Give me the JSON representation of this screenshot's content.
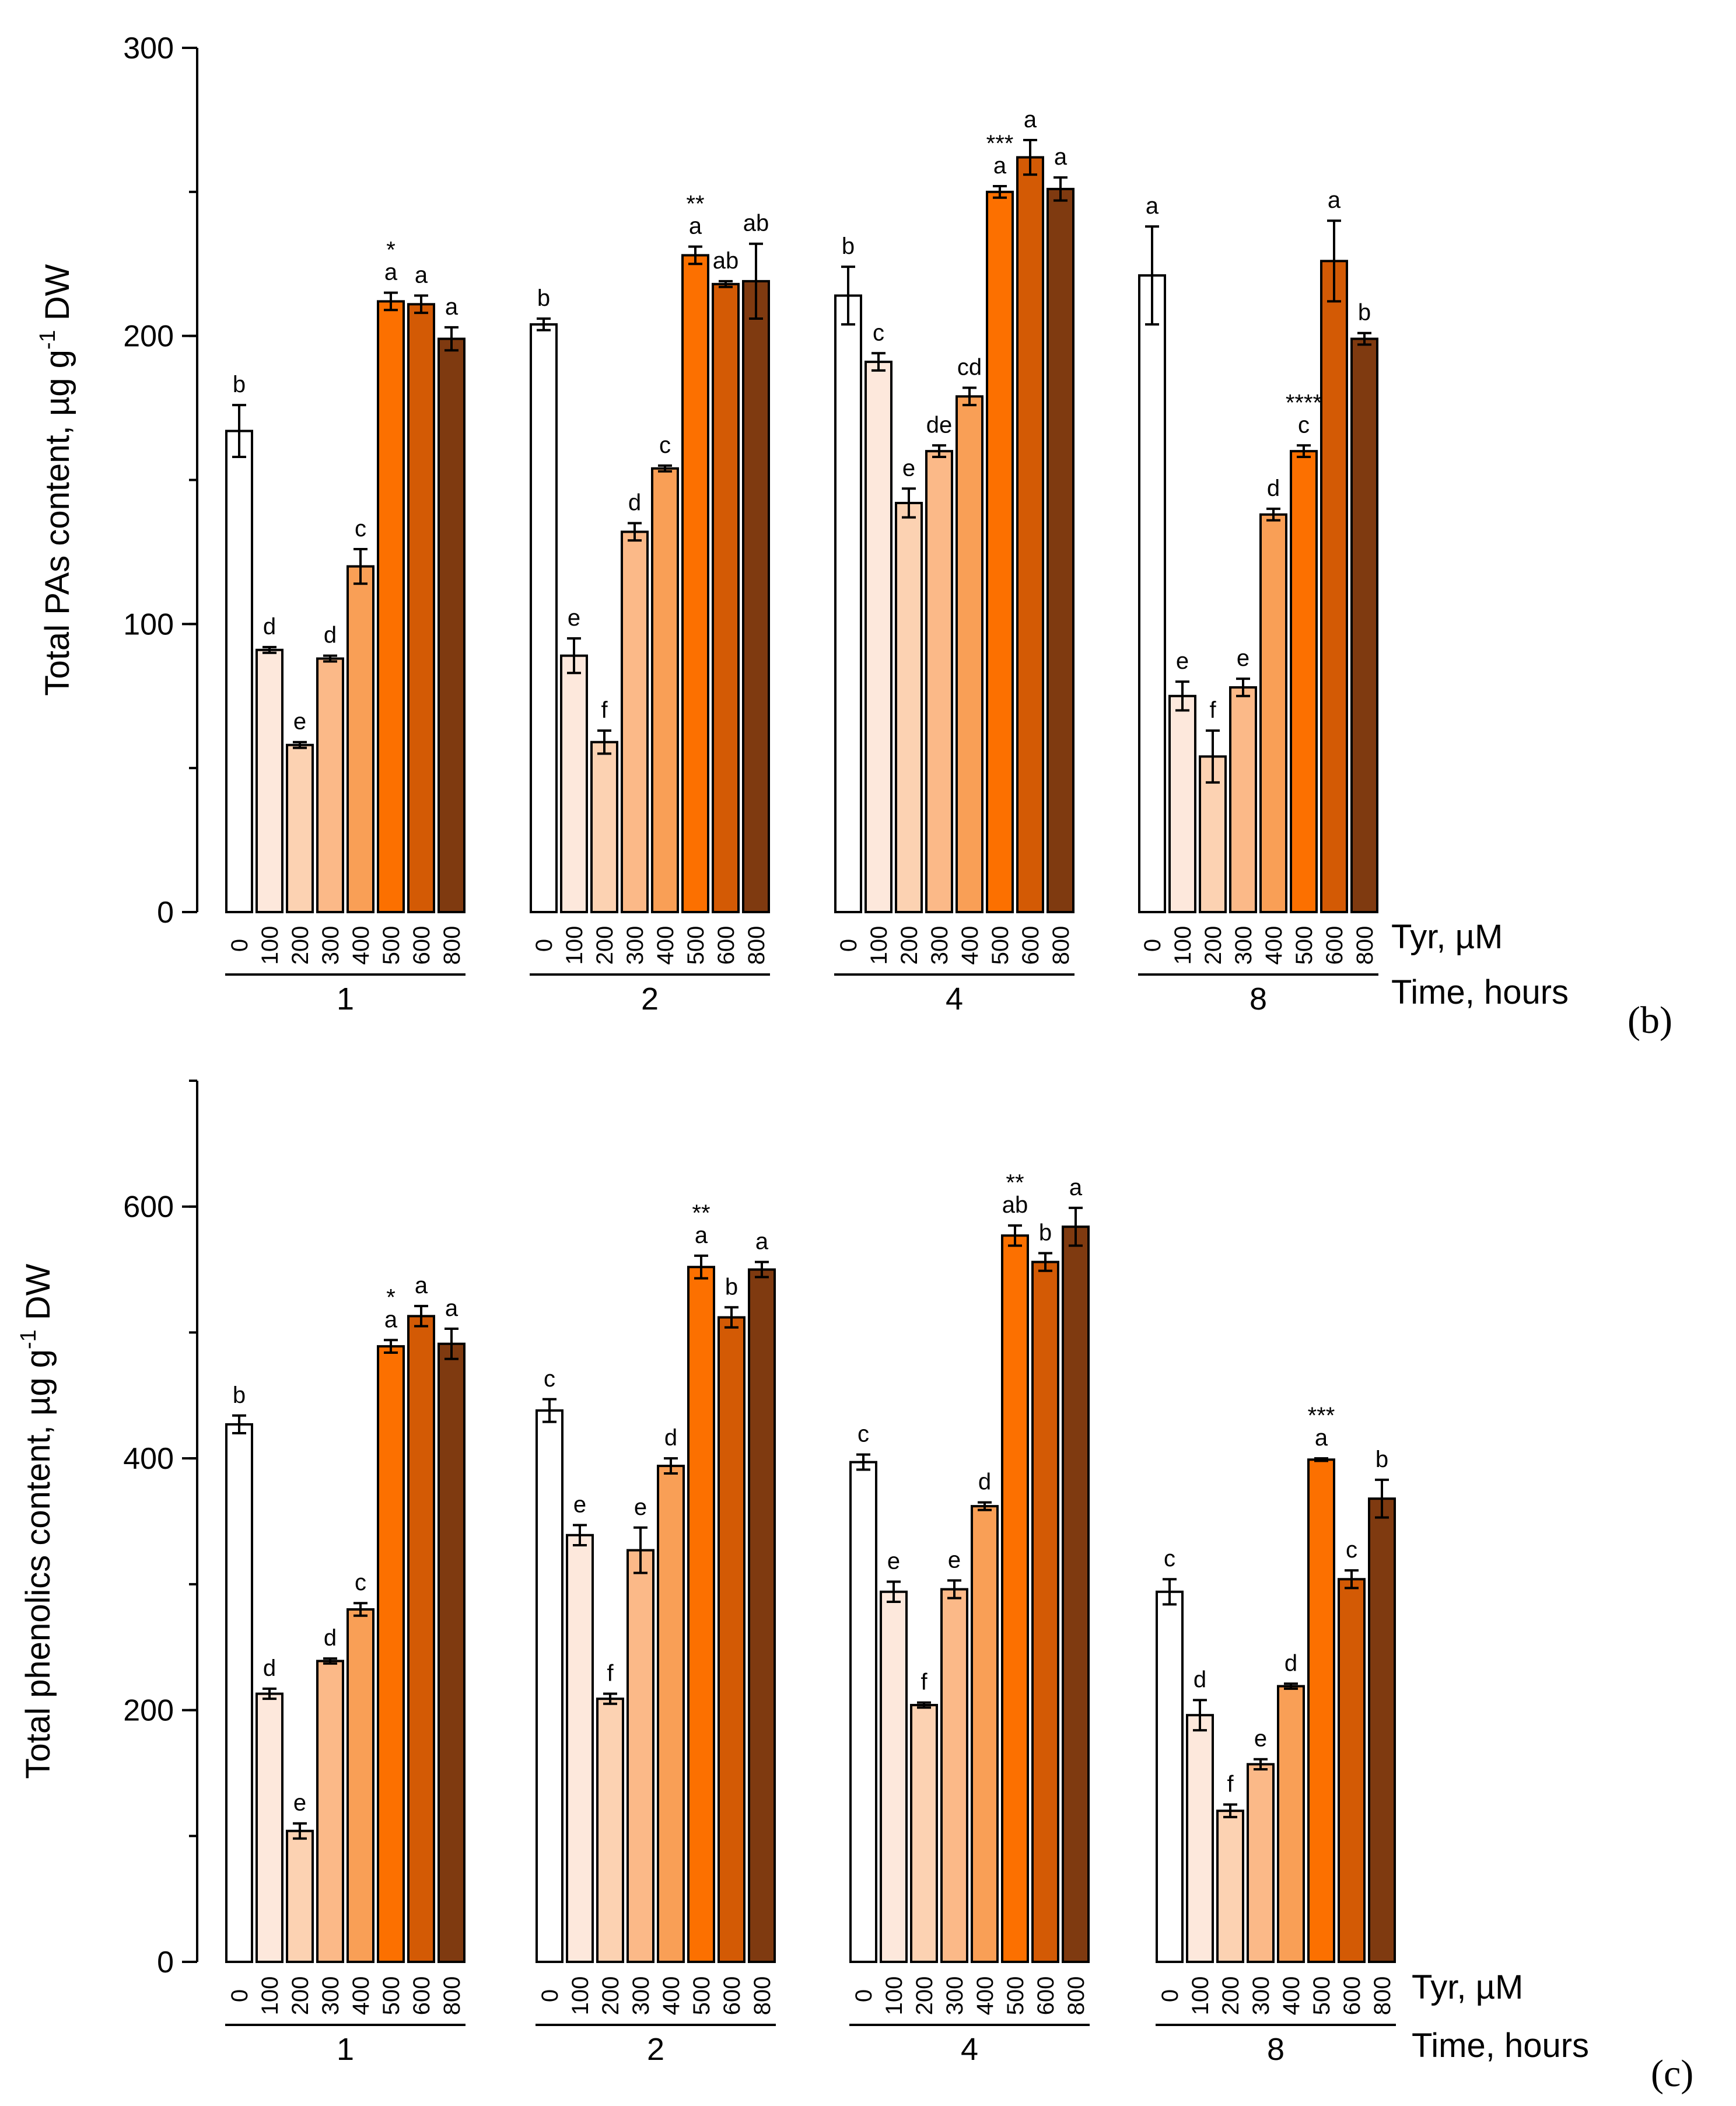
{
  "palette": [
    "#ffffff",
    "#fde8dc",
    "#fcd2b2",
    "#fbb988",
    "#f99f56",
    "#fc7000",
    "#d35a05",
    "#7f3a10"
  ],
  "chart_data": [
    {
      "type": "bar",
      "panel_label": "(b)",
      "ylabel": "Total PAs content, µg g⁻¹ DW",
      "ylabel_main": "Total PAs content, µg g",
      "ylabel_sup": "-1",
      "ylabel_tail": " DW",
      "ylim": [
        0,
        300
      ],
      "yticks": [
        "0",
        "100",
        "200",
        "300"
      ],
      "x_inner_title": "Tyr, µM",
      "x_outer_title": "Time, hours",
      "concentrations": [
        "0",
        "100",
        "200",
        "300",
        "400",
        "500",
        "600",
        "800"
      ],
      "groups": [
        {
          "time": "1",
          "values": [
            167,
            91,
            58,
            88,
            120,
            212,
            211,
            199
          ],
          "errors": [
            9,
            1,
            1,
            1,
            6,
            3,
            3,
            4
          ],
          "letters": [
            "b",
            "d",
            "e",
            "d",
            "c",
            "a",
            "a",
            "a"
          ],
          "stars": [
            "",
            "",
            "",
            "",
            "",
            "*",
            "",
            ""
          ]
        },
        {
          "time": "2",
          "values": [
            204,
            89,
            59,
            132,
            154,
            228,
            218,
            219
          ],
          "errors": [
            2,
            6,
            4,
            3,
            1,
            3,
            1,
            13
          ],
          "letters": [
            "b",
            "e",
            "f",
            "d",
            "c",
            "a",
            "ab",
            "ab"
          ],
          "stars": [
            "",
            "",
            "",
            "",
            "",
            "**",
            "",
            ""
          ]
        },
        {
          "time": "4",
          "values": [
            214,
            191,
            142,
            160,
            179,
            250,
            262,
            251
          ],
          "errors": [
            10,
            3,
            5,
            2,
            3,
            2,
            6,
            4
          ],
          "letters": [
            "b",
            "c",
            "e",
            "de",
            "cd",
            "a",
            "a",
            "a"
          ],
          "stars": [
            "",
            "",
            "",
            "",
            "",
            "***",
            "",
            ""
          ]
        },
        {
          "time": "8",
          "values": [
            221,
            75,
            54,
            78,
            138,
            160,
            226,
            199
          ],
          "errors": [
            17,
            5,
            9,
            3,
            2,
            2,
            14,
            2
          ],
          "letters": [
            "a",
            "e",
            "f",
            "e",
            "d",
            "c",
            "a",
            "b"
          ],
          "stars": [
            "",
            "",
            "",
            "",
            "",
            "****",
            "",
            ""
          ]
        }
      ]
    },
    {
      "type": "bar",
      "panel_label": "(c)",
      "ylabel": "Total phenolics content, µg g⁻¹ DW",
      "ylabel_main": "Total phenolics content, µg g",
      "ylabel_sup": "-1",
      "ylabel_tail": " DW",
      "ylim": [
        0,
        700
      ],
      "yticks": [
        "0",
        "200",
        "400",
        "600"
      ],
      "x_inner_title": "Tyr, µM",
      "x_outer_title": "Time, hours",
      "concentrations": [
        "0",
        "100",
        "200",
        "300",
        "400",
        "500",
        "600",
        "800"
      ],
      "groups": [
        {
          "time": "1",
          "values": [
            427,
            213,
            104,
            239,
            280,
            489,
            513,
            491
          ],
          "errors": [
            7,
            4,
            6,
            2,
            5,
            5,
            8,
            12
          ],
          "letters": [
            "b",
            "d",
            "e",
            "d",
            "c",
            "a",
            "a",
            "a"
          ],
          "stars": [
            "",
            "",
            "",
            "",
            "",
            "*",
            "",
            ""
          ]
        },
        {
          "time": "2",
          "values": [
            438,
            339,
            209,
            327,
            394,
            552,
            512,
            550
          ],
          "errors": [
            9,
            8,
            4,
            18,
            6,
            9,
            8,
            6
          ],
          "letters": [
            "c",
            "e",
            "f",
            "e",
            "d",
            "a",
            "b",
            "a"
          ],
          "stars": [
            "",
            "",
            "",
            "",
            "",
            "**",
            "",
            ""
          ]
        },
        {
          "time": "4",
          "values": [
            397,
            294,
            204,
            296,
            362,
            577,
            556,
            584
          ],
          "errors": [
            6,
            8,
            2,
            7,
            3,
            8,
            7,
            15
          ],
          "letters": [
            "c",
            "e",
            "f",
            "e",
            "d",
            "ab",
            "b",
            "a"
          ],
          "stars": [
            "",
            "",
            "",
            "",
            "",
            "**",
            "",
            ""
          ]
        },
        {
          "time": "8",
          "values": [
            294,
            196,
            120,
            157,
            219,
            399,
            304,
            368
          ],
          "errors": [
            10,
            12,
            5,
            4,
            2,
            1,
            7,
            15
          ],
          "letters": [
            "c",
            "d",
            "f",
            "e",
            "d",
            "a",
            "c",
            "b"
          ],
          "stars": [
            "",
            "",
            "",
            "",
            "",
            "***",
            "",
            ""
          ]
        }
      ]
    }
  ]
}
